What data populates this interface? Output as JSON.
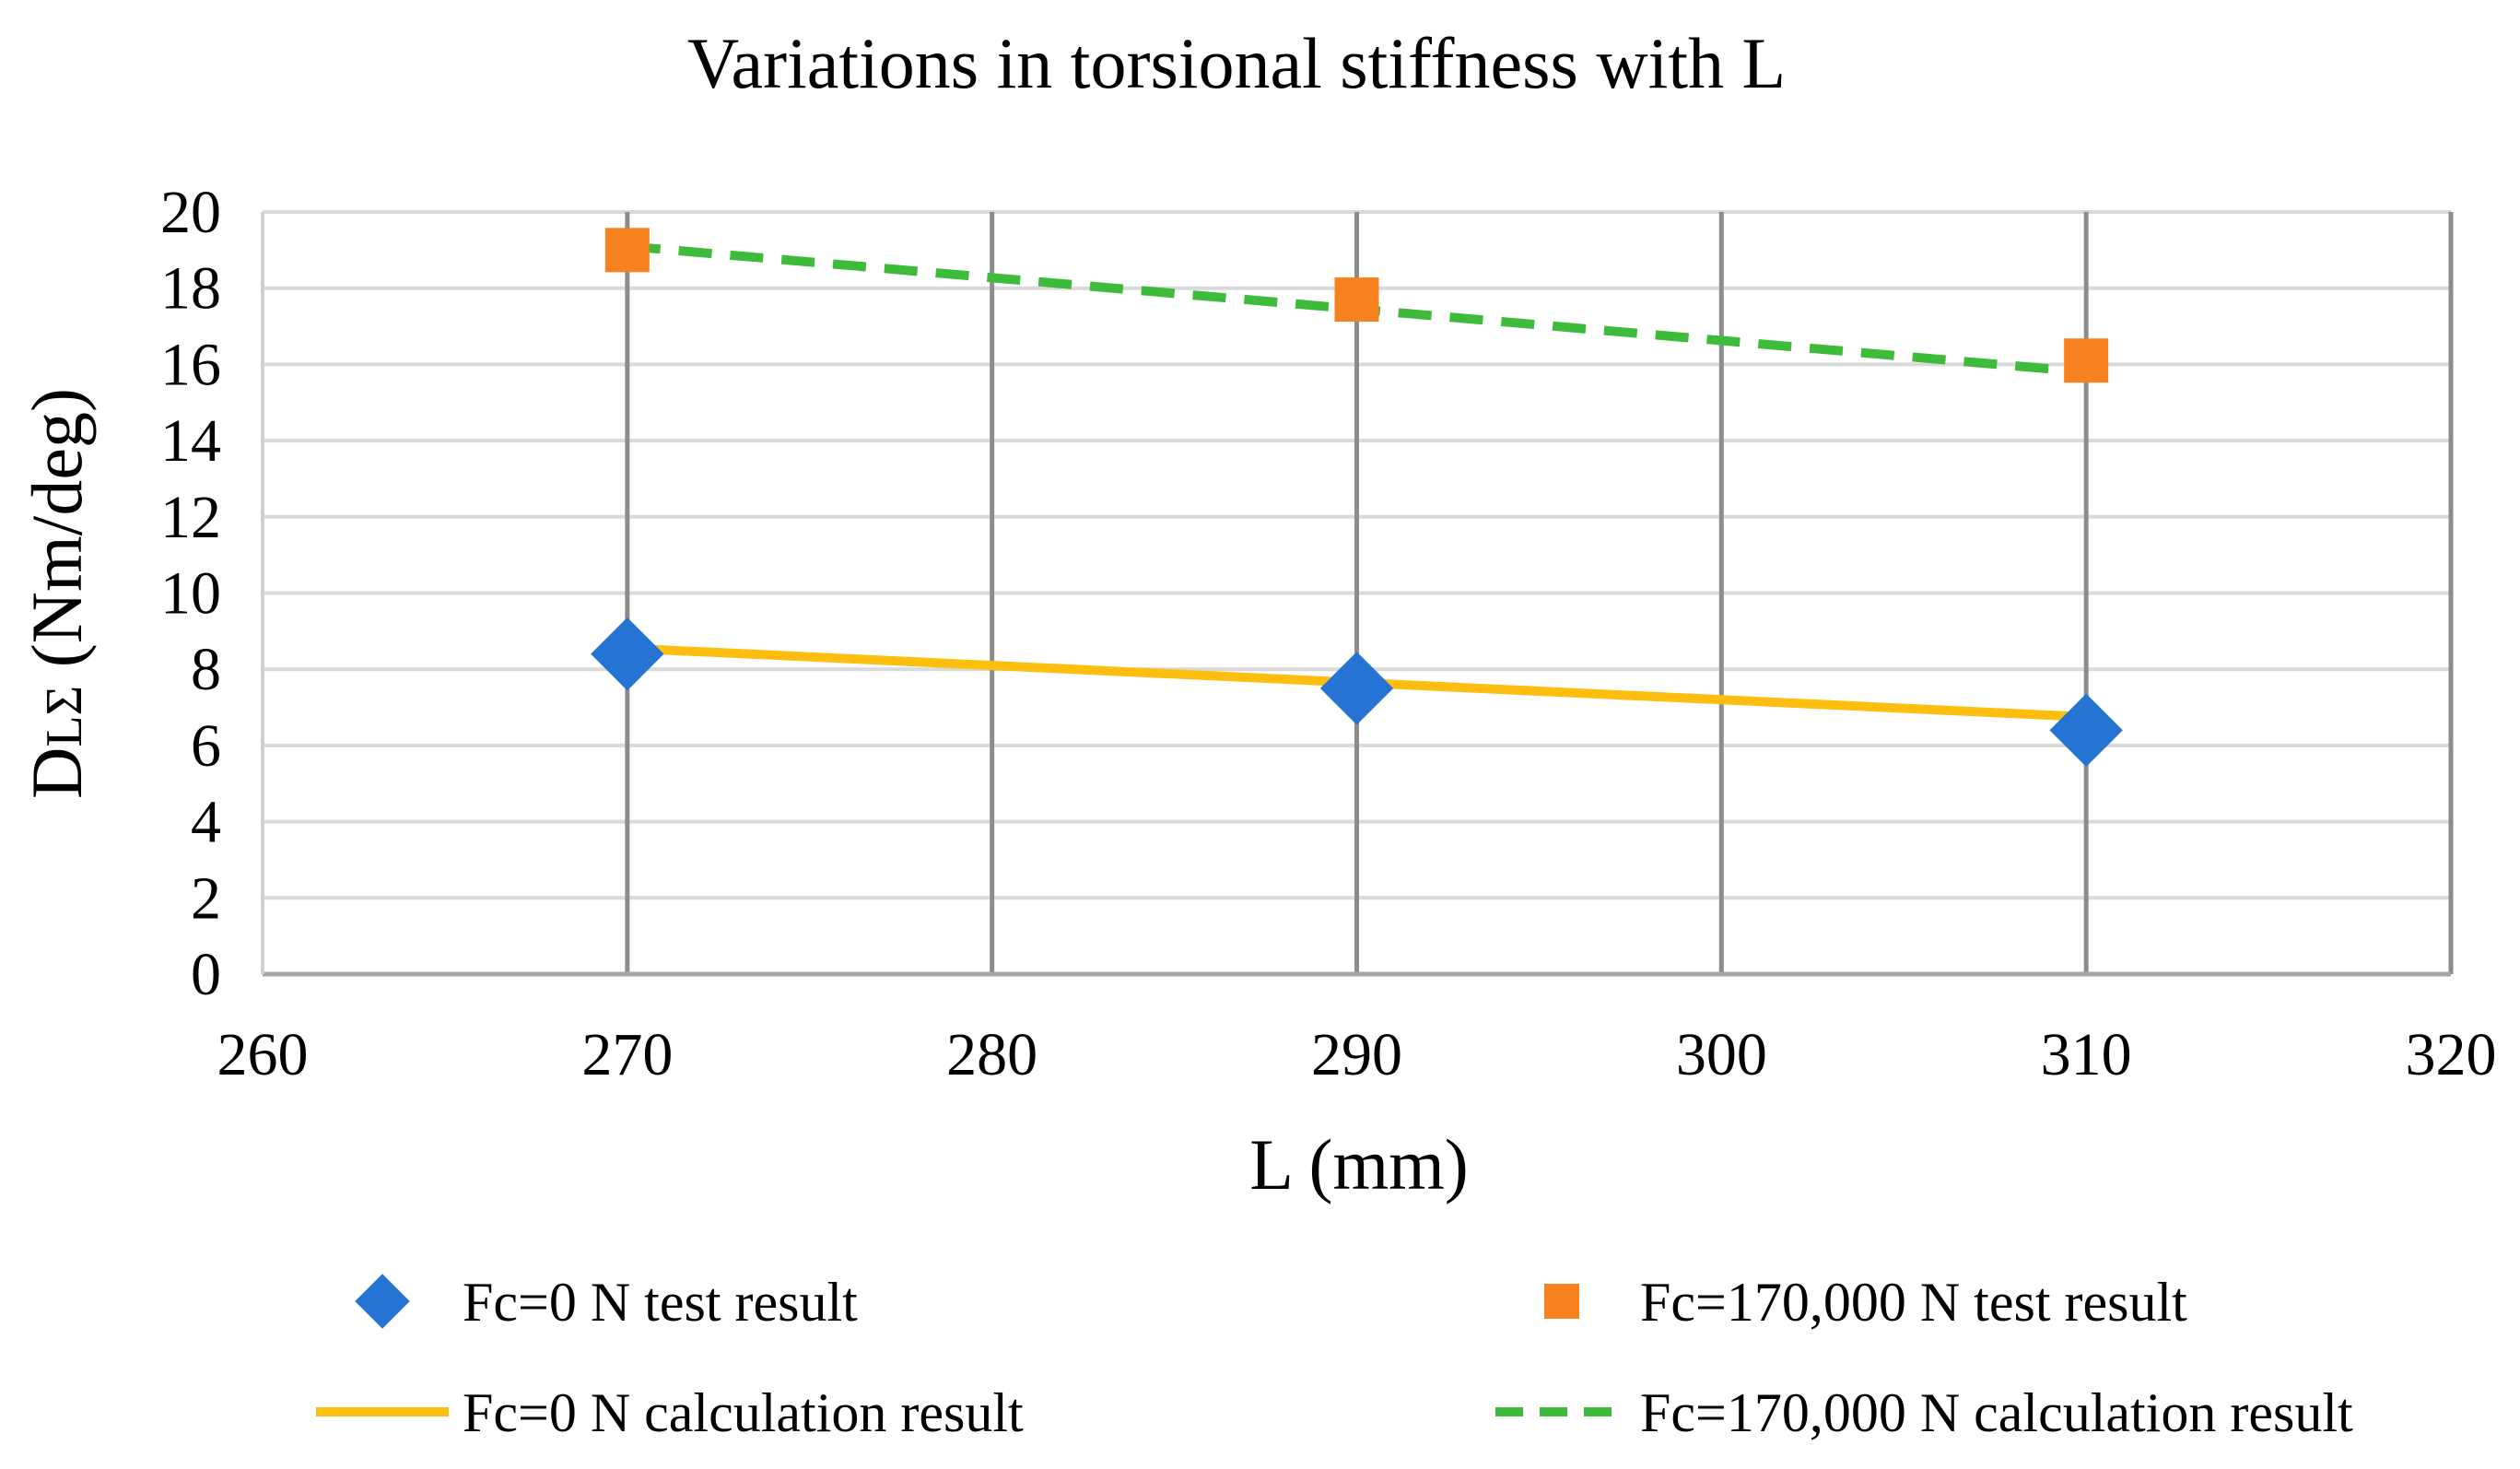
{
  "chart_data": {
    "type": "line",
    "title": "Variations in torsional stiffness with L",
    "xlabel": "L (mm)",
    "ylabel": {
      "main": "D",
      "subscript": "LΣ",
      "unit": " (Nm/deg)"
    },
    "xlim": [
      260,
      320
    ],
    "ylim": [
      0,
      20
    ],
    "x_ticks": [
      260,
      270,
      280,
      290,
      300,
      310,
      320
    ],
    "y_ticks": [
      0,
      2,
      4,
      6,
      8,
      10,
      12,
      14,
      16,
      18,
      20
    ],
    "grid": true,
    "legend_position": "bottom",
    "series": [
      {
        "name": "Fc=0 N test result",
        "kind": "marker",
        "marker": "diamond",
        "color": "#2574D3",
        "x": [
          270,
          290,
          310
        ],
        "y": [
          8.4,
          7.5,
          6.4
        ]
      },
      {
        "name": "Fc=170,000 N test result",
        "kind": "marker",
        "marker": "square",
        "color": "#F7811F",
        "x": [
          270,
          290,
          310
        ],
        "y": [
          19.0,
          17.7,
          16.1
        ]
      },
      {
        "name": "Fc=0 N calculation result",
        "kind": "line",
        "dash": "solid",
        "color": "#FDBE10",
        "x": [
          270,
          310
        ],
        "y": [
          8.55,
          6.75
        ]
      },
      {
        "name": "Fc=170,000 N calculation result",
        "kind": "line",
        "dash": "dashed",
        "color": "#3EBB3A",
        "x": [
          270,
          310
        ],
        "y": [
          19.1,
          15.8
        ]
      }
    ]
  }
}
